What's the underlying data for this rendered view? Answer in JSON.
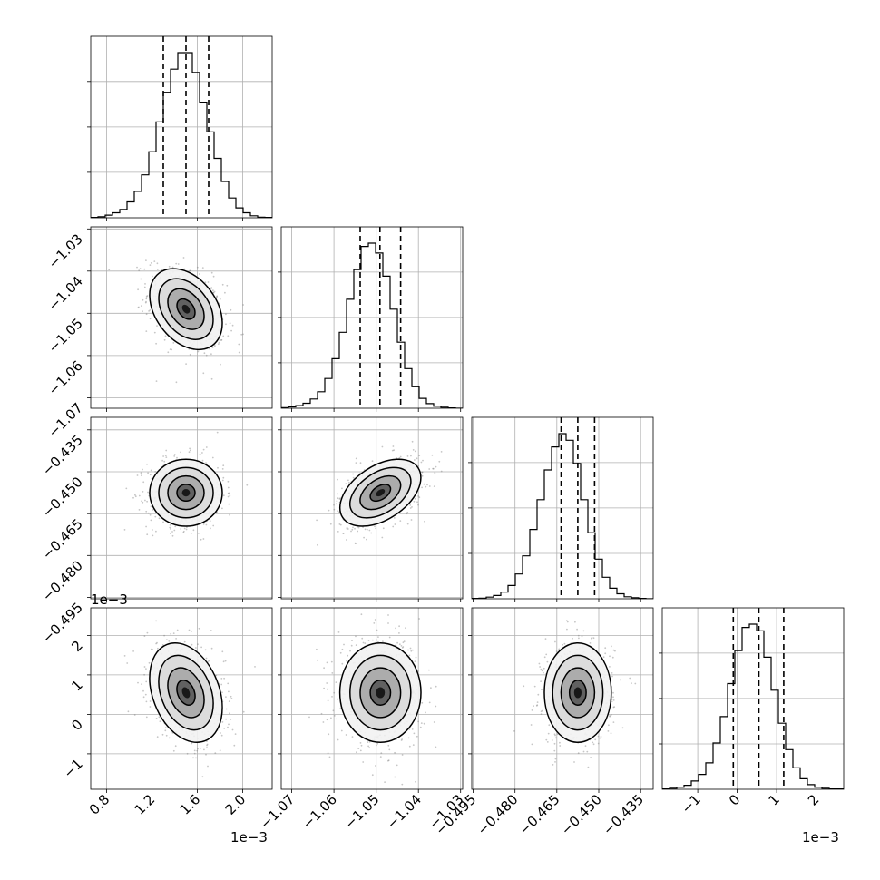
{
  "chart_data": {
    "type": "corner",
    "variables": [
      {
        "id": "p0",
        "range": [
          0.00066,
          0.00226
        ],
        "ticks": [
          0.0008,
          0.0012,
          0.0016,
          0.002
        ],
        "tick_labels": [
          "0.8",
          "1.2",
          "1.6",
          "2.0"
        ],
        "offset_label": "1e−3",
        "quantiles": [
          0.0013,
          0.0015,
          0.0017
        ],
        "mean": 0.0015,
        "sd": 0.00016
      },
      {
        "id": "p1",
        "range": [
          -1.0725,
          -1.0295
        ],
        "ticks": [
          -1.07,
          -1.06,
          -1.05,
          -1.04,
          -1.03
        ],
        "tick_labels": [
          "−1.07",
          "−1.06",
          "−1.05",
          "−1.04",
          "−1.03"
        ],
        "offset_label": "",
        "quantiles": [
          -1.0538,
          -1.0491,
          -1.0442
        ],
        "mean": -1.049,
        "sd": 0.0048
      },
      {
        "id": "p2",
        "range": [
          -0.4955,
          -0.4305
        ],
        "ticks": [
          -0.495,
          -0.48,
          -0.465,
          -0.45,
          -0.435
        ],
        "tick_labels": [
          "−0.495",
          "−0.480",
          "−0.465",
          "−0.450",
          "−0.435"
        ],
        "offset_label": "",
        "quantiles": [
          -0.4635,
          -0.4575,
          -0.4515
        ],
        "mean": -0.4575,
        "sd": 0.006
      },
      {
        "id": "p3",
        "range": [
          -0.0019,
          0.0027
        ],
        "ticks": [
          -0.001,
          0.0,
          0.001,
          0.002
        ],
        "tick_labels": [
          "−1",
          "0",
          "1",
          "2"
        ],
        "offset_label": "1e−3",
        "quantiles": [
          -0.0001,
          0.00055,
          0.00118
        ],
        "mean": 0.00055,
        "sd": 0.00063
      }
    ],
    "histograms": [
      {
        "var": 0,
        "counts": [
          1,
          3,
          8,
          15,
          25,
          48,
          80,
          130,
          200,
          290,
          380,
          450,
          500,
          500,
          440,
          350,
          260,
          180,
          110,
          60,
          30,
          15,
          6,
          2,
          1
        ]
      },
      {
        "var": 1,
        "counts": [
          2,
          4,
          8,
          15,
          28,
          50,
          90,
          150,
          230,
          330,
          420,
          490,
          500,
          470,
          400,
          300,
          200,
          120,
          65,
          30,
          14,
          6,
          3,
          1,
          0
        ]
      },
      {
        "var": 2,
        "counts": [
          1,
          2,
          5,
          10,
          20,
          40,
          75,
          130,
          210,
          300,
          390,
          460,
          500,
          480,
          410,
          300,
          200,
          120,
          65,
          32,
          15,
          6,
          3,
          1,
          0
        ]
      },
      {
        "var": 3,
        "counts": [
          1,
          3,
          6,
          12,
          25,
          45,
          80,
          140,
          220,
          320,
          420,
          490,
          500,
          480,
          400,
          300,
          200,
          120,
          65,
          32,
          14,
          6,
          3,
          1,
          1
        ]
      }
    ],
    "pairs": [
      {
        "x": 0,
        "y": 1,
        "correlation": -0.35
      },
      {
        "x": 0,
        "y": 2,
        "correlation": 0.0
      },
      {
        "x": 1,
        "y": 2,
        "correlation": 0.45
      },
      {
        "x": 0,
        "y": 3,
        "correlation": -0.3
      },
      {
        "x": 1,
        "y": 3,
        "correlation": 0.0
      },
      {
        "x": 2,
        "y": 3,
        "correlation": 0.0
      }
    ],
    "contour_levels_sigma": [
      0.5,
      1.0,
      1.5,
      2.0
    ],
    "grid": true,
    "colors": {
      "contour": "#000000",
      "points": "#808080",
      "hist": "#000000",
      "grid": "#b0b0b0",
      "quantile": "#000000"
    }
  }
}
